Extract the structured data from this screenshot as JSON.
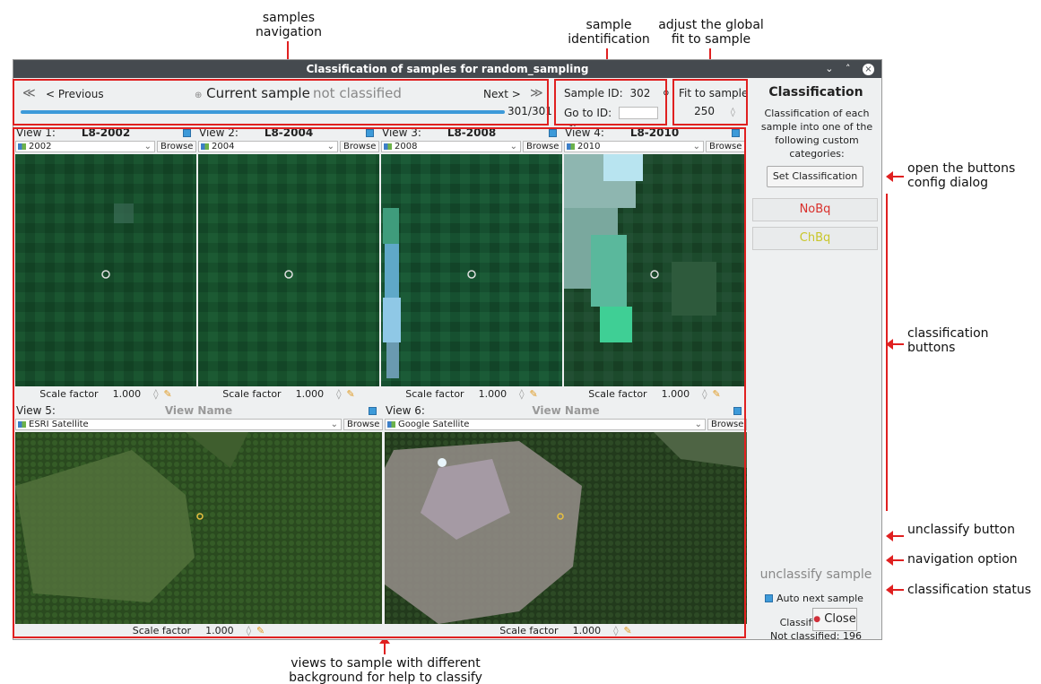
{
  "annotations": {
    "samples_navigation": "samples\nnavigation",
    "sample_identification": "sample\nidentification",
    "adjust_fit": "adjust the global\nfit to sample",
    "open_buttons_config": "open the buttons\nconfig dialog",
    "classification_buttons": "classification\nbuttons",
    "unclassify_button": "unclassify button",
    "navigation_option": "navigation option",
    "classification_status": "classification status",
    "views_caption": "views to sample with different\nbackground for help to classify"
  },
  "window": {
    "title": "Classification of samples for random_sampling",
    "controls": [
      "⌄",
      "˄",
      "×"
    ]
  },
  "nav": {
    "first": "≪",
    "previous": "< Previous",
    "current_marker": "⊕",
    "current_label": "Current sample",
    "current_status": "not classified",
    "next": "Next >",
    "last": "≫",
    "progress_text": "301/301",
    "progress": 1.0
  },
  "id_panel": {
    "sample_id_label": "Sample ID:",
    "sample_id_value": "302",
    "goto_label": "Go to ID:",
    "goto_value": ""
  },
  "fit_panel": {
    "button": "Fit to sample",
    "value": "250"
  },
  "views": [
    {
      "label": "View 1:",
      "name": "L8-2002",
      "layer": "2002",
      "browse": "Browse",
      "scale_label": "Scale factor",
      "scale": "1.000"
    },
    {
      "label": "View 2:",
      "name": "L8-2004",
      "layer": "2004",
      "browse": "Browse",
      "scale_label": "Scale factor",
      "scale": "1.000"
    },
    {
      "label": "View 3:",
      "name": "L8-2008",
      "layer": "2008",
      "browse": "Browse",
      "scale_label": "Scale factor",
      "scale": "1.000"
    },
    {
      "label": "View 4:",
      "name": "L8-2010",
      "layer": "2010",
      "browse": "Browse",
      "scale_label": "Scale factor",
      "scale": "1.000"
    },
    {
      "label": "View 5:",
      "name": "View Name",
      "layer": "ESRI Satellite",
      "browse": "Browse",
      "scale_label": "Scale factor",
      "scale": "1.000"
    },
    {
      "label": "View 6:",
      "name": "View Name",
      "layer": "Google Satellite",
      "browse": "Browse",
      "scale_label": "Scale factor",
      "scale": "1.000"
    }
  ],
  "sidebar": {
    "title": "Classification",
    "description": "Classification of each sample into one of the following custom categories:",
    "set_button": "Set Classification",
    "categories": [
      {
        "label": "NoBq",
        "color": "#d9302c"
      },
      {
        "label": "ChBq",
        "color": "#c9c62a"
      }
    ],
    "unclassify": "unclassify sample",
    "auto_next": "Auto next sample",
    "classified": "Classified: 105",
    "not_classified": "Not classified: 196",
    "close": "Close"
  },
  "colors": {
    "accent": "#3d9ad9",
    "annotation_red": "#e02020",
    "titlebar": "#454a4f"
  }
}
